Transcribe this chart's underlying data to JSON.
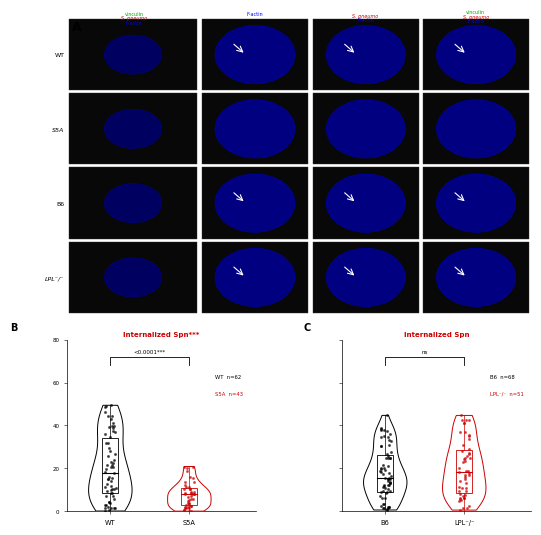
{
  "panel_B": {
    "title": "Internalized Spn***",
    "title_color": "#cc0000",
    "groups": [
      "WT",
      "S5A"
    ],
    "group_colors": [
      "black",
      "#cc0000"
    ],
    "ylim": [
      0,
      80
    ],
    "yticks": [
      0,
      20,
      40,
      60,
      80
    ],
    "significance": "<0.0001***",
    "legend_line1": "WT  n=62",
    "legend_line2": "S5A  n=43",
    "legend_color1": "black",
    "legend_color2": "#cc0000"
  },
  "panel_C": {
    "title": "Internalized Spn",
    "title_color": "#cc0000",
    "groups": [
      "B6",
      "LPL⁻/⁻"
    ],
    "group_colors": [
      "black",
      "#cc0000"
    ],
    "ylim": [
      0,
      80
    ],
    "yticks": [
      0,
      20,
      40,
      60,
      80
    ],
    "significance": "ns",
    "legend_line1": "B6  n=68",
    "legend_line2": "LPL⁻/⁻  n=51",
    "legend_color1": "black",
    "legend_color2": "#cc0000"
  },
  "top_bg_color": "#f0f0f0",
  "fig_bg": "white",
  "label_A_color": "black",
  "row_labels": [
    "WT",
    "S5A",
    "B6",
    "LPL⁻/⁻"
  ],
  "col_headers_col1": [
    "vinculin",
    "S. pneumo",
    "F-actin"
  ],
  "col_headers_col1_colors": [
    "#00cc00",
    "#cc0000",
    "blue"
  ],
  "col_headers_right": [
    "F-actin",
    "S. pneumo\nF-actin",
    "vinculin\nS. pneumo\nF-actin"
  ]
}
